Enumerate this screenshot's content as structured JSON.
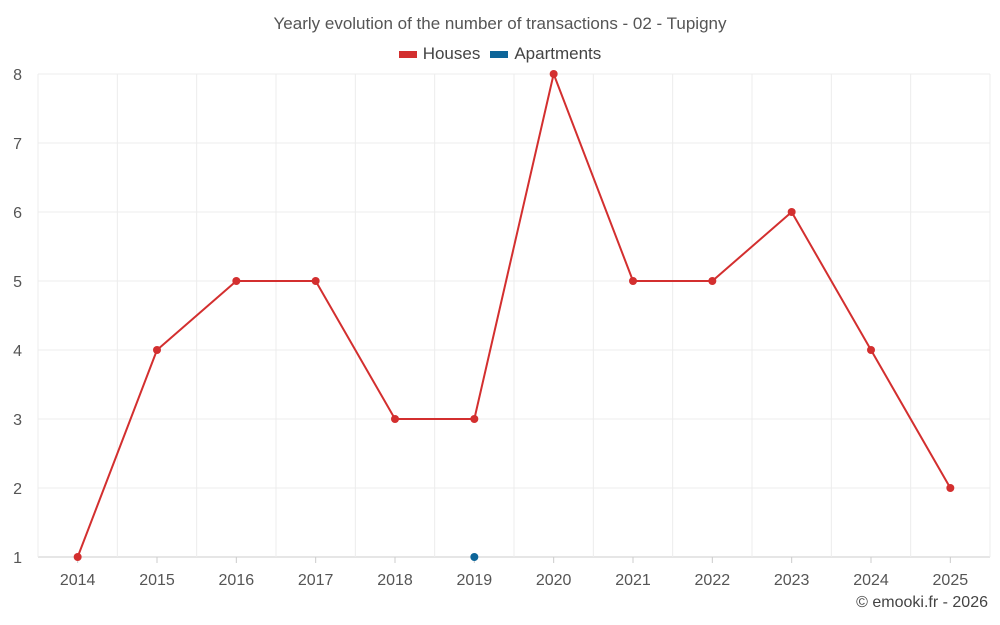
{
  "chart_data": {
    "type": "line",
    "title": "Yearly evolution of the number of transactions - 02 - Tupigny",
    "categories": [
      "2014",
      "2015",
      "2016",
      "2017",
      "2018",
      "2019",
      "2020",
      "2021",
      "2022",
      "2023",
      "2024",
      "2025"
    ],
    "series": [
      {
        "name": "Houses",
        "color": "#d32f2f",
        "values": [
          1,
          4,
          5,
          5,
          3,
          3,
          8,
          5,
          5,
          6,
          4,
          2
        ]
      },
      {
        "name": "Apartments",
        "color": "#0d6599",
        "values": [
          null,
          null,
          null,
          null,
          null,
          1,
          null,
          null,
          null,
          null,
          null,
          null
        ]
      }
    ],
    "yticks": [
      1,
      2,
      3,
      4,
      5,
      6,
      7,
      8
    ],
    "ylim": [
      1,
      8
    ],
    "grid": true,
    "legend": "top-center"
  },
  "footer": {
    "credit": "© emooki.fr - 2026"
  }
}
